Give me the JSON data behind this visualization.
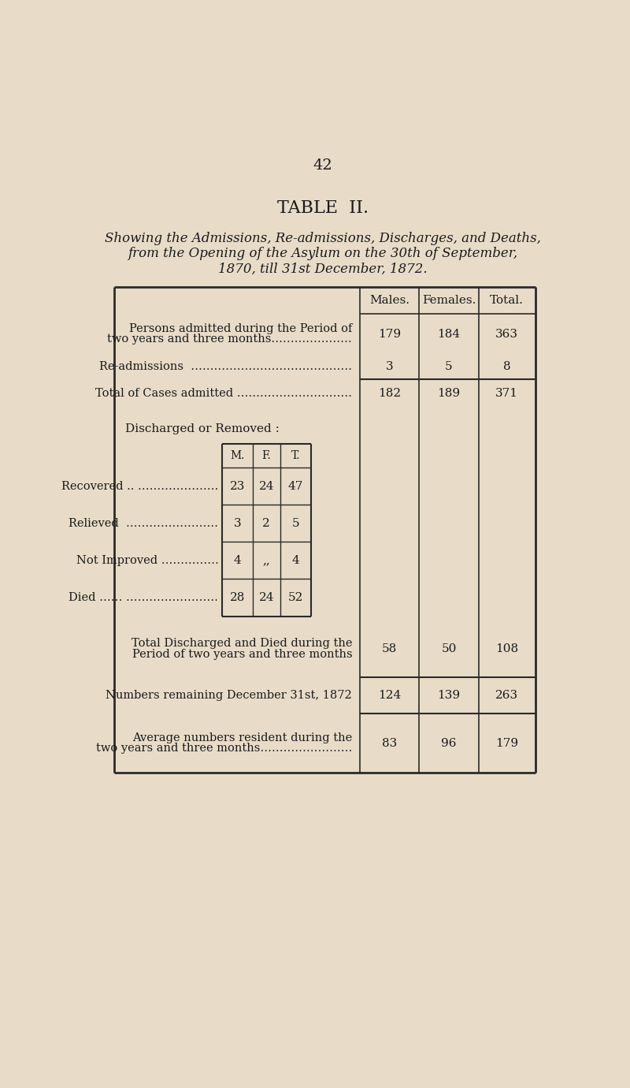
{
  "page_number": "42",
  "title": "TABLE  II.",
  "subtitle_line1": "Showing the Admissions, Re-admissions, Discharges, and Deaths,",
  "subtitle_line2": "from the Opening of the Asylum on the 30th of September,",
  "subtitle_line3": "1870, till 31st December, 1872.",
  "bg_color": "#E8DCC8",
  "text_color": "#1a1a1a",
  "col_headers": [
    "Males.",
    "Females.",
    "Total."
  ],
  "row1_label1": "Persons admitted during the Period of",
  "row1_label2": "two years and three months…………………",
  "row1_values": [
    "179",
    "184",
    "363"
  ],
  "row2_label": "Re-admissions  ……………………………………",
  "row2_values": [
    "3",
    "5",
    "8"
  ],
  "row3_label": "Total of Cases admitted …………………………",
  "row3_values": [
    "182",
    "189",
    "371"
  ],
  "discharged_label": "Discharged or Removed :",
  "inner_headers": [
    "M.",
    "F.",
    "T."
  ],
  "inner_rows": [
    {
      "label": "Recovered .. …………………",
      "m": "23",
      "f": "24",
      "t": "47"
    },
    {
      "label": "Relieved  ……………………",
      "m": "3",
      "f": "2",
      "t": "5"
    },
    {
      "label": "Not Improved ……………",
      "m": "4",
      "f": ",,",
      "t": "4"
    },
    {
      "label": "Died …… ……………………",
      "m": "28",
      "f": "24",
      "t": "52"
    }
  ],
  "bot1_label1": "Total Discharged and Died during the",
  "bot1_label2": "Period of two years and three months",
  "bot1_values": [
    "58",
    "50",
    "108"
  ],
  "bot2_label": "Numbers remaining December 31st, 1872",
  "bot2_values": [
    "124",
    "139",
    "263"
  ],
  "bot3_label1": "Average numbers resident during the",
  "bot3_label2": "two years and three months……………………",
  "bot3_values": [
    "83",
    "96",
    "179"
  ]
}
